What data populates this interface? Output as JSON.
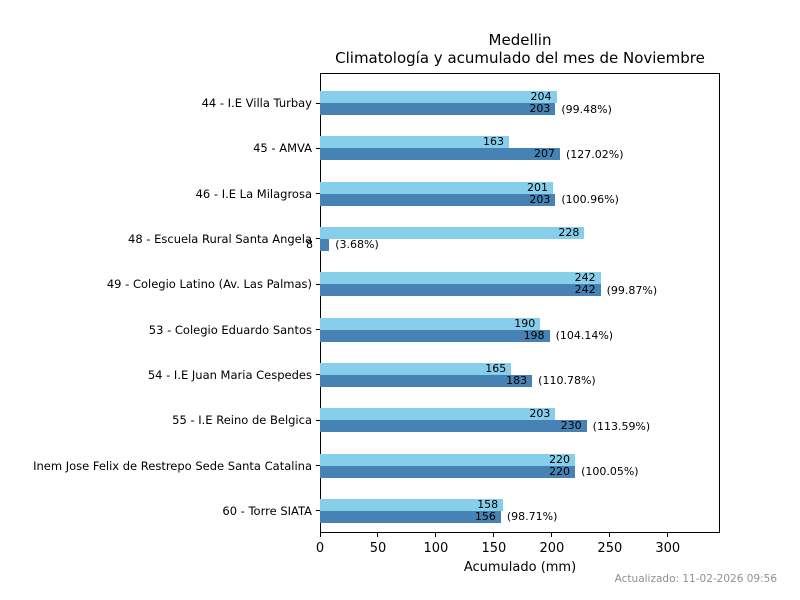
{
  "title": "Medellin",
  "subtitle": "Climatología y acumulado del mes de Noviembre",
  "xlabel": "Acumulado (mm)",
  "footer": "Actualizado: 11-02-2026 09:56",
  "colors": {
    "climatologia_bar": "#87CEEB",
    "acumulado_bar": "#4682B4",
    "axis": "#000000",
    "footer_text": "#909090"
  },
  "chart_data": {
    "type": "bar",
    "orientation": "horizontal",
    "title": "Medellin",
    "subtitle": "Climatología y acumulado del mes de Noviembre",
    "xlabel": "Acumulado (mm)",
    "xlim": [
      0,
      345
    ],
    "xticks": [
      0,
      50,
      100,
      150,
      200,
      250,
      300
    ],
    "grid": false,
    "legend": "none",
    "categories": [
      "44 - I.E Villa Turbay",
      "45 - AMVA",
      "46 - I.E La Milagrosa",
      "48 - Escuela Rural Santa Angela",
      "49 - Colegio Latino (Av. Las Palmas)",
      "53 - Colegio Eduardo Santos",
      "54 - I.E Juan Maria Cespedes",
      "55 - I.E Reino de Belgica",
      "Inem Jose Felix de Restrepo Sede Santa Catalina",
      "60 - Torre SIATA"
    ],
    "series": [
      {
        "name": "Climatología",
        "color": "#87CEEB",
        "values": [
          204,
          163,
          201,
          228,
          242,
          190,
          165,
          203,
          220,
          158
        ]
      },
      {
        "name": "Acumulado",
        "color": "#4682B4",
        "values": [
          203,
          207,
          203,
          8,
          242,
          198,
          183,
          230,
          220,
          156
        ]
      }
    ],
    "percent_labels": [
      "(99.48%)",
      "(127.02%)",
      "(100.96%)",
      "(3.68%)",
      "(99.87%)",
      "(104.14%)",
      "(110.78%)",
      "(113.59%)",
      "(100.05%)",
      "(98.71%)"
    ]
  }
}
